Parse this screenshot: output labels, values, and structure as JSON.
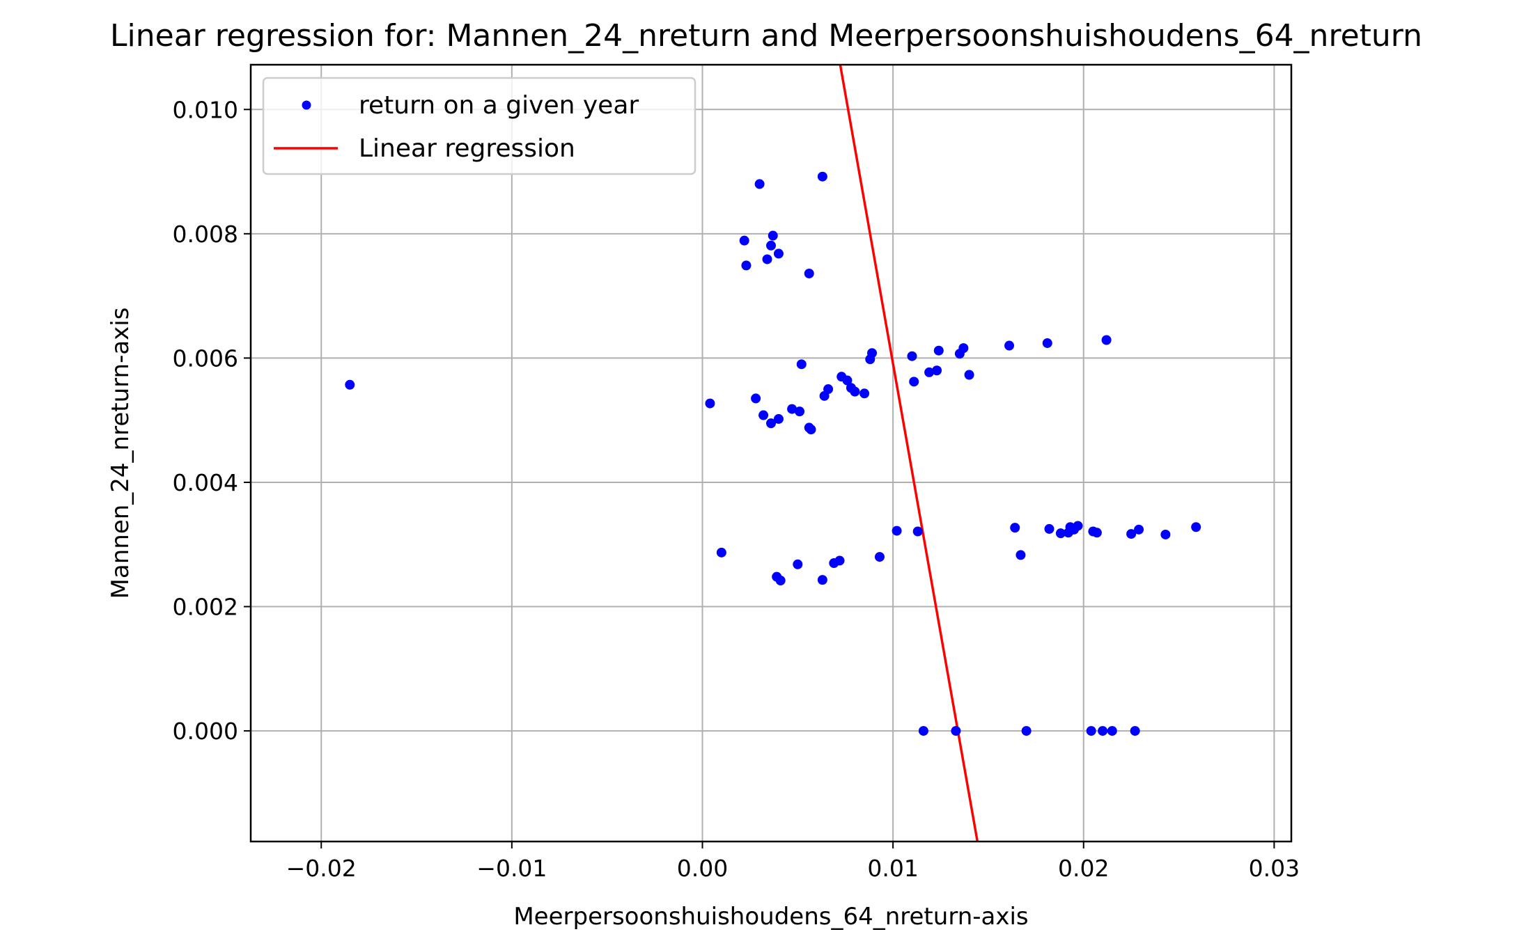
{
  "chart_data": {
    "type": "scatter",
    "title": "Linear regression for: Mannen_24_nreturn and Meerpersoonshuishoudens_64_nreturn",
    "xlabel": "Meerpersoonshuishoudens_64_nreturn-axis",
    "ylabel": "Mannen_24_nreturn-axis",
    "xlim": [
      -0.0237,
      0.0309
    ],
    "ylim": [
      -0.00178,
      0.01072
    ],
    "xticks": [
      -0.02,
      -0.01,
      0.0,
      0.01,
      0.02,
      0.03
    ],
    "xtick_labels": [
      "−0.02",
      "−0.01",
      "0.00",
      "0.01",
      "0.02",
      "0.03"
    ],
    "yticks": [
      0.0,
      0.002,
      0.004,
      0.006,
      0.008,
      0.01
    ],
    "ytick_labels": [
      "0.000",
      "0.002",
      "0.004",
      "0.006",
      "0.008",
      "0.010"
    ],
    "grid": true,
    "legend_position": "upper-left",
    "colors": {
      "scatter": "#0000ff",
      "line": "#ff0000",
      "grid": "#b0b0b0"
    },
    "series": [
      {
        "name": "return on a given year",
        "kind": "scatter",
        "points": [
          [
            -0.0185,
            0.00557
          ],
          [
            0.0004,
            0.00527
          ],
          [
            0.001,
            0.00287
          ],
          [
            0.0022,
            0.00789
          ],
          [
            0.0023,
            0.00749
          ],
          [
            0.0028,
            0.00535
          ],
          [
            0.003,
            0.0088
          ],
          [
            0.0032,
            0.00508
          ],
          [
            0.0034,
            0.00759
          ],
          [
            0.0036,
            0.00495
          ],
          [
            0.0036,
            0.00781
          ],
          [
            0.0037,
            0.00797
          ],
          [
            0.0039,
            0.00248
          ],
          [
            0.004,
            0.00768
          ],
          [
            0.004,
            0.00502
          ],
          [
            0.0041,
            0.00242
          ],
          [
            0.0047,
            0.00518
          ],
          [
            0.005,
            0.00268
          ],
          [
            0.0051,
            0.00514
          ],
          [
            0.0052,
            0.0059
          ],
          [
            0.0056,
            0.00736
          ],
          [
            0.0056,
            0.00488
          ],
          [
            0.0057,
            0.00485
          ],
          [
            0.0063,
            0.00892
          ],
          [
            0.0063,
            0.00243
          ],
          [
            0.0064,
            0.00539
          ],
          [
            0.0066,
            0.0055
          ],
          [
            0.0069,
            0.0027
          ],
          [
            0.0072,
            0.00274
          ],
          [
            0.0073,
            0.0057
          ],
          [
            0.0076,
            0.00564
          ],
          [
            0.0078,
            0.00552
          ],
          [
            0.008,
            0.00546
          ],
          [
            0.0085,
            0.00543
          ],
          [
            0.0088,
            0.00598
          ],
          [
            0.0089,
            0.00608
          ],
          [
            0.0093,
            0.0028
          ],
          [
            0.0102,
            0.00322
          ],
          [
            0.011,
            0.00603
          ],
          [
            0.0111,
            0.00562
          ],
          [
            0.0113,
            0.00321
          ],
          [
            0.0116,
            0.0
          ],
          [
            0.0119,
            0.00577
          ],
          [
            0.0123,
            0.0058
          ],
          [
            0.0124,
            0.00612
          ],
          [
            0.0133,
            0.0
          ],
          [
            0.0135,
            0.00607
          ],
          [
            0.0137,
            0.00616
          ],
          [
            0.014,
            0.00573
          ],
          [
            0.0161,
            0.0062
          ],
          [
            0.0164,
            0.00327
          ],
          [
            0.0167,
            0.00283
          ],
          [
            0.017,
            0.0
          ],
          [
            0.0181,
            0.00624
          ],
          [
            0.0182,
            0.00325
          ],
          [
            0.0188,
            0.00318
          ],
          [
            0.0192,
            0.00319
          ],
          [
            0.0193,
            0.00328
          ],
          [
            0.0195,
            0.00324
          ],
          [
            0.0197,
            0.0033
          ],
          [
            0.0204,
            0.0
          ],
          [
            0.0205,
            0.00321
          ],
          [
            0.0207,
            0.00319
          ],
          [
            0.021,
            0.0
          ],
          [
            0.0212,
            0.00629
          ],
          [
            0.0215,
            0.0
          ],
          [
            0.0225,
            0.00317
          ],
          [
            0.0227,
            0.0
          ],
          [
            0.0229,
            0.00324
          ],
          [
            0.0243,
            0.00316
          ],
          [
            0.0259,
            0.00328
          ]
        ]
      },
      {
        "name": "Linear regression",
        "kind": "line",
        "points": [
          [
            0.00723,
            0.01072
          ],
          [
            0.01443,
            -0.00178
          ]
        ]
      }
    ]
  }
}
